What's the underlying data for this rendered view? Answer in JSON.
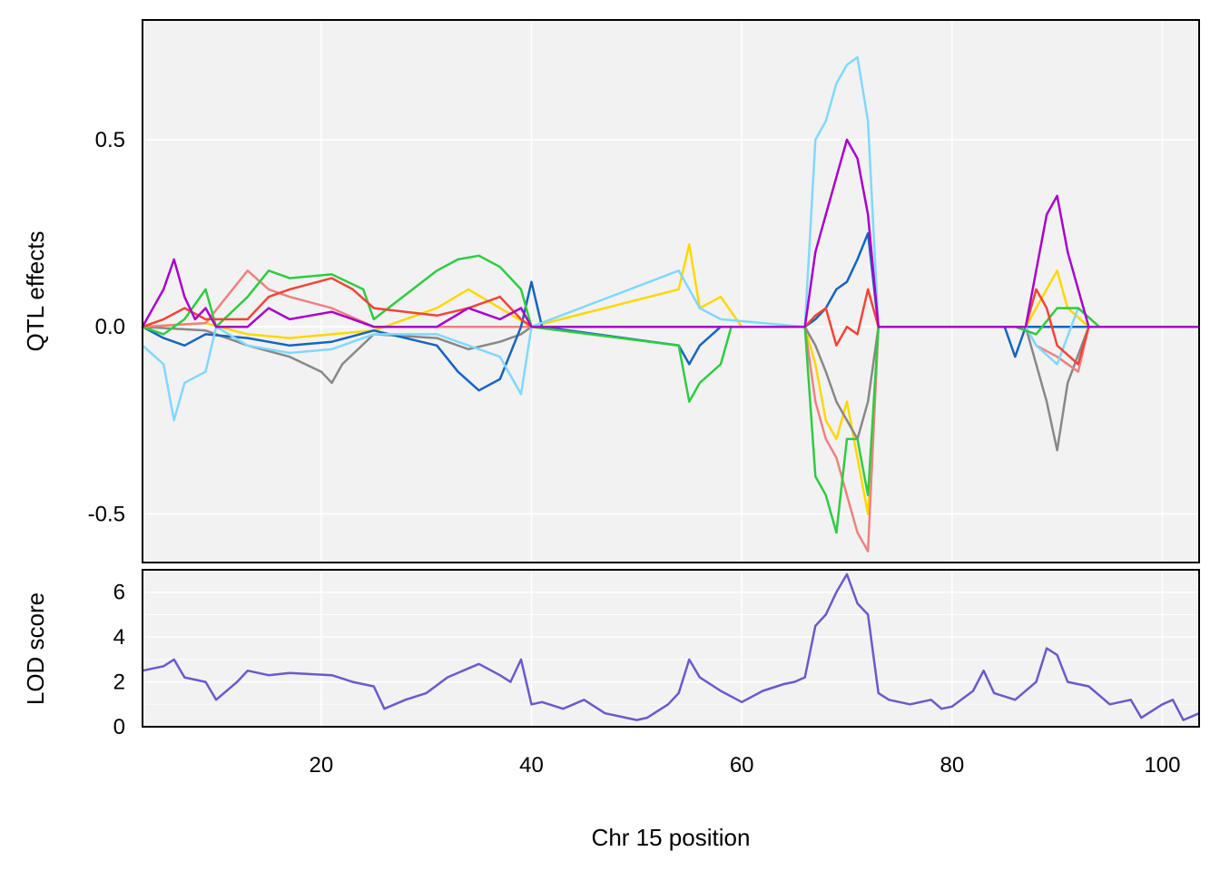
{
  "chart_data": [
    {
      "panel": "qtl-effects",
      "type": "line",
      "ylabel": "QTL effects",
      "xlim": [
        3,
        103.5
      ],
      "ylim": [
        -0.63,
        0.82
      ],
      "yticks": [
        -0.5,
        0.0,
        0.5
      ],
      "ytick_labels": [
        "-0.5",
        "0.0",
        "0.5"
      ],
      "grid": true,
      "colors": {
        "gold": "#FFD700",
        "gray": "#888888",
        "salmon": "#F08080",
        "blue": "#1565C0",
        "skyblue": "#80D8FF",
        "green": "#2ECC40",
        "red": "#F44336",
        "purple": "#AA00CC"
      },
      "series": [
        {
          "color": "#FFD700",
          "points": [
            [
              3,
              0
            ],
            [
              9,
              0.01
            ],
            [
              13,
              -0.02
            ],
            [
              17,
              -0.03
            ],
            [
              21,
              -0.02
            ],
            [
              25,
              -0.01
            ],
            [
              31,
              0.05
            ],
            [
              34,
              0.1
            ],
            [
              37,
              0.05
            ],
            [
              40,
              0
            ],
            [
              54,
              0.1
            ],
            [
              55,
              0.22
            ],
            [
              56,
              0.05
            ],
            [
              58,
              0.08
            ],
            [
              60,
              0
            ],
            [
              66,
              0
            ],
            [
              67,
              -0.1
            ],
            [
              68,
              -0.25
            ],
            [
              69,
              -0.3
            ],
            [
              70,
              -0.2
            ],
            [
              71,
              -0.35
            ],
            [
              72,
              -0.5
            ],
            [
              73,
              0
            ],
            [
              87,
              0
            ],
            [
              88,
              0.05
            ],
            [
              89,
              0.1
            ],
            [
              90,
              0.15
            ],
            [
              91,
              0.05
            ],
            [
              93,
              0
            ],
            [
              103.5,
              0
            ]
          ]
        },
        {
          "color": "#888888",
          "points": [
            [
              3,
              0
            ],
            [
              9,
              -0.01
            ],
            [
              13,
              -0.05
            ],
            [
              17,
              -0.08
            ],
            [
              20,
              -0.12
            ],
            [
              21,
              -0.15
            ],
            [
              22,
              -0.1
            ],
            [
              25,
              -0.02
            ],
            [
              31,
              -0.03
            ],
            [
              34,
              -0.06
            ],
            [
              37,
              -0.04
            ],
            [
              39,
              -0.02
            ],
            [
              40,
              0
            ],
            [
              66,
              0
            ],
            [
              67,
              -0.05
            ],
            [
              68,
              -0.12
            ],
            [
              69,
              -0.2
            ],
            [
              70,
              -0.25
            ],
            [
              71,
              -0.3
            ],
            [
              72,
              -0.2
            ],
            [
              73,
              0
            ],
            [
              87,
              0
            ],
            [
              88,
              -0.1
            ],
            [
              89,
              -0.2
            ],
            [
              90,
              -0.33
            ],
            [
              91,
              -0.15
            ],
            [
              93,
              0
            ],
            [
              103.5,
              0
            ]
          ]
        },
        {
          "color": "#F08080",
          "points": [
            [
              3,
              0
            ],
            [
              9,
              0.01
            ],
            [
              13,
              0.15
            ],
            [
              15,
              0.1
            ],
            [
              17,
              0.08
            ],
            [
              21,
              0.05
            ],
            [
              25,
              0
            ],
            [
              40,
              0
            ],
            [
              66,
              0
            ],
            [
              67,
              -0.2
            ],
            [
              68,
              -0.3
            ],
            [
              69,
              -0.35
            ],
            [
              70,
              -0.45
            ],
            [
              71,
              -0.55
            ],
            [
              72,
              -0.6
            ],
            [
              73,
              0
            ],
            [
              87,
              0
            ],
            [
              88,
              -0.05
            ],
            [
              90,
              -0.08
            ],
            [
              92,
              -0.12
            ],
            [
              93,
              0
            ],
            [
              103.5,
              0
            ]
          ]
        },
        {
          "color": "#1565C0",
          "points": [
            [
              3,
              0
            ],
            [
              5,
              -0.03
            ],
            [
              7,
              -0.05
            ],
            [
              9,
              -0.02
            ],
            [
              13,
              -0.03
            ],
            [
              17,
              -0.05
            ],
            [
              21,
              -0.04
            ],
            [
              25,
              -0.01
            ],
            [
              31,
              -0.05
            ],
            [
              33,
              -0.12
            ],
            [
              35,
              -0.17
            ],
            [
              37,
              -0.14
            ],
            [
              39,
              0
            ],
            [
              40,
              0.12
            ],
            [
              41,
              0
            ],
            [
              54,
              -0.05
            ],
            [
              55,
              -0.1
            ],
            [
              56,
              -0.05
            ],
            [
              58,
              0
            ],
            [
              66,
              0
            ],
            [
              67,
              0.02
            ],
            [
              68,
              0.05
            ],
            [
              69,
              0.1
            ],
            [
              70,
              0.12
            ],
            [
              71,
              0.18
            ],
            [
              72,
              0.25
            ],
            [
              73,
              0
            ],
            [
              85,
              0
            ],
            [
              86,
              -0.08
            ],
            [
              87,
              0
            ],
            [
              103.5,
              0
            ]
          ]
        },
        {
          "color": "#80D8FF",
          "points": [
            [
              3,
              -0.05
            ],
            [
              5,
              -0.1
            ],
            [
              6,
              -0.25
            ],
            [
              7,
              -0.15
            ],
            [
              9,
              -0.12
            ],
            [
              10,
              0
            ],
            [
              13,
              -0.05
            ],
            [
              17,
              -0.07
            ],
            [
              21,
              -0.06
            ],
            [
              25,
              -0.02
            ],
            [
              31,
              -0.02
            ],
            [
              34,
              -0.05
            ],
            [
              37,
              -0.08
            ],
            [
              39,
              -0.18
            ],
            [
              40,
              0
            ],
            [
              54,
              0.15
            ],
            [
              55,
              0.1
            ],
            [
              56,
              0.05
            ],
            [
              58,
              0.02
            ],
            [
              66,
              0
            ],
            [
              67,
              0.5
            ],
            [
              68,
              0.55
            ],
            [
              69,
              0.65
            ],
            [
              70,
              0.7
            ],
            [
              71,
              0.72
            ],
            [
              72,
              0.55
            ],
            [
              73,
              0
            ],
            [
              87,
              0
            ],
            [
              88,
              -0.05
            ],
            [
              90,
              -0.1
            ],
            [
              92,
              0.05
            ],
            [
              94,
              0
            ],
            [
              103.5,
              0
            ]
          ]
        },
        {
          "color": "#2ECC40",
          "points": [
            [
              3,
              0
            ],
            [
              5,
              -0.02
            ],
            [
              7,
              0.02
            ],
            [
              9,
              0.1
            ],
            [
              10,
              0
            ],
            [
              13,
              0.08
            ],
            [
              15,
              0.15
            ],
            [
              17,
              0.13
            ],
            [
              21,
              0.14
            ],
            [
              24,
              0.1
            ],
            [
              25,
              0.02
            ],
            [
              31,
              0.15
            ],
            [
              33,
              0.18
            ],
            [
              35,
              0.19
            ],
            [
              37,
              0.16
            ],
            [
              39,
              0.1
            ],
            [
              40,
              0
            ],
            [
              54,
              -0.05
            ],
            [
              55,
              -0.2
            ],
            [
              56,
              -0.15
            ],
            [
              58,
              -0.1
            ],
            [
              59,
              0
            ],
            [
              66,
              0
            ],
            [
              67,
              -0.4
            ],
            [
              68,
              -0.45
            ],
            [
              69,
              -0.55
            ],
            [
              70,
              -0.3
            ],
            [
              71,
              -0.3
            ],
            [
              72,
              -0.45
            ],
            [
              73,
              0
            ],
            [
              86,
              0
            ],
            [
              88,
              -0.02
            ],
            [
              90,
              0.05
            ],
            [
              92,
              0.05
            ],
            [
              94,
              0
            ],
            [
              103.5,
              0
            ]
          ]
        },
        {
          "color": "#F44336",
          "points": [
            [
              3,
              0
            ],
            [
              5,
              0.02
            ],
            [
              7,
              0.05
            ],
            [
              9,
              0.02
            ],
            [
              13,
              0.02
            ],
            [
              15,
              0.08
            ],
            [
              17,
              0.1
            ],
            [
              21,
              0.13
            ],
            [
              23,
              0.1
            ],
            [
              25,
              0.05
            ],
            [
              31,
              0.03
            ],
            [
              34,
              0.05
            ],
            [
              37,
              0.08
            ],
            [
              39,
              0.02
            ],
            [
              40,
              0
            ],
            [
              66,
              0
            ],
            [
              67,
              0.03
            ],
            [
              68,
              0.05
            ],
            [
              69,
              -0.05
            ],
            [
              70,
              0
            ],
            [
              71,
              -0.02
            ],
            [
              72,
              0.1
            ],
            [
              73,
              0
            ],
            [
              87,
              0
            ],
            [
              88,
              0.1
            ],
            [
              89,
              0.05
            ],
            [
              90,
              -0.05
            ],
            [
              92,
              -0.1
            ],
            [
              93,
              0
            ],
            [
              103.5,
              0
            ]
          ]
        },
        {
          "color": "#AA00CC",
          "points": [
            [
              3,
              0
            ],
            [
              5,
              0.1
            ],
            [
              6,
              0.18
            ],
            [
              7,
              0.08
            ],
            [
              8,
              0.02
            ],
            [
              9,
              0.05
            ],
            [
              10,
              0
            ],
            [
              13,
              0
            ],
            [
              15,
              0.05
            ],
            [
              17,
              0.02
            ],
            [
              21,
              0.04
            ],
            [
              25,
              0
            ],
            [
              31,
              0
            ],
            [
              34,
              0.05
            ],
            [
              37,
              0.02
            ],
            [
              39,
              0.05
            ],
            [
              40,
              0
            ],
            [
              66,
              0
            ],
            [
              67,
              0.2
            ],
            [
              68,
              0.3
            ],
            [
              69,
              0.4
            ],
            [
              70,
              0.5
            ],
            [
              71,
              0.45
            ],
            [
              72,
              0.3
            ],
            [
              73,
              0
            ],
            [
              87,
              0
            ],
            [
              88,
              0.15
            ],
            [
              89,
              0.3
            ],
            [
              90,
              0.35
            ],
            [
              91,
              0.2
            ],
            [
              93,
              0
            ],
            [
              103.5,
              0
            ]
          ]
        }
      ]
    },
    {
      "panel": "lod-score",
      "type": "line",
      "xlabel": "Chr 15 position",
      "ylabel": "LOD score",
      "xlim": [
        3,
        103.5
      ],
      "ylim": [
        0,
        7.0
      ],
      "xticks": [
        20,
        40,
        60,
        80,
        100
      ],
      "xtick_labels": [
        "20",
        "40",
        "60",
        "80",
        "100"
      ],
      "yticks": [
        0,
        2,
        4,
        6
      ],
      "ytick_labels": [
        "0",
        "2",
        "4",
        "6"
      ],
      "grid": true,
      "color": "#6A5ACD",
      "x": [
        3,
        5,
        6,
        7,
        9,
        10,
        12,
        13,
        15,
        17,
        21,
        23,
        25,
        26,
        28,
        30,
        32,
        34,
        35,
        37,
        38,
        39,
        40,
        41,
        43,
        45,
        47,
        49,
        50,
        51,
        53,
        54,
        55,
        56,
        58,
        60,
        62,
        64,
        65,
        66,
        67,
        68,
        69,
        70,
        71,
        72,
        73,
        74,
        76,
        78,
        79,
        80,
        82,
        83,
        84,
        86,
        88,
        89,
        90,
        91,
        93,
        95,
        97,
        98,
        100,
        101,
        102,
        103.5
      ],
      "y": [
        2.5,
        2.7,
        3.0,
        2.2,
        2.0,
        1.2,
        2.0,
        2.5,
        2.3,
        2.4,
        2.3,
        2.0,
        1.8,
        0.8,
        1.2,
        1.5,
        2.2,
        2.6,
        2.8,
        2.3,
        2.0,
        3.0,
        1.0,
        1.1,
        0.8,
        1.2,
        0.6,
        0.4,
        0.3,
        0.4,
        1.0,
        1.5,
        3.0,
        2.2,
        1.6,
        1.1,
        1.6,
        1.9,
        2.0,
        2.2,
        4.5,
        5.0,
        6.0,
        6.8,
        5.5,
        5.0,
        1.5,
        1.2,
        1.0,
        1.2,
        0.8,
        0.9,
        1.6,
        2.5,
        1.5,
        1.2,
        2.0,
        3.5,
        3.2,
        2.0,
        1.8,
        1.0,
        1.2,
        0.4,
        1.0,
        1.2,
        0.3,
        0.6
      ]
    }
  ]
}
